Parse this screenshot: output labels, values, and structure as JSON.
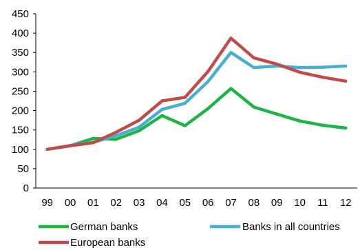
{
  "chart_data": {
    "type": "line",
    "title": "",
    "xlabel": "",
    "ylabel": "",
    "categories": [
      "99",
      "00",
      "01",
      "02",
      "03",
      "04",
      "05",
      "06",
      "07",
      "08",
      "09",
      "10",
      "11",
      "12"
    ],
    "ylim": [
      0,
      450
    ],
    "yticks": [
      0,
      50,
      100,
      150,
      200,
      250,
      300,
      350,
      400,
      450
    ],
    "grid": false,
    "legend_position": "bottom",
    "series": [
      {
        "name": "German banks",
        "color": "#1db345",
        "values": [
          100,
          109,
          128,
          126,
          148,
          187,
          161,
          205,
          257,
          209,
          191,
          173,
          162,
          155
        ]
      },
      {
        "name": "Banks in all countries",
        "color": "#4aaecf",
        "values": [
          100,
          110,
          118,
          135,
          157,
          203,
          219,
          275,
          350,
          311,
          315,
          311,
          312,
          315
        ]
      },
      {
        "name": "European banks",
        "color": "#c04b4b",
        "values": [
          100,
          109,
          117,
          144,
          175,
          225,
          234,
          301,
          387,
          336,
          320,
          299,
          286,
          276
        ]
      }
    ]
  }
}
